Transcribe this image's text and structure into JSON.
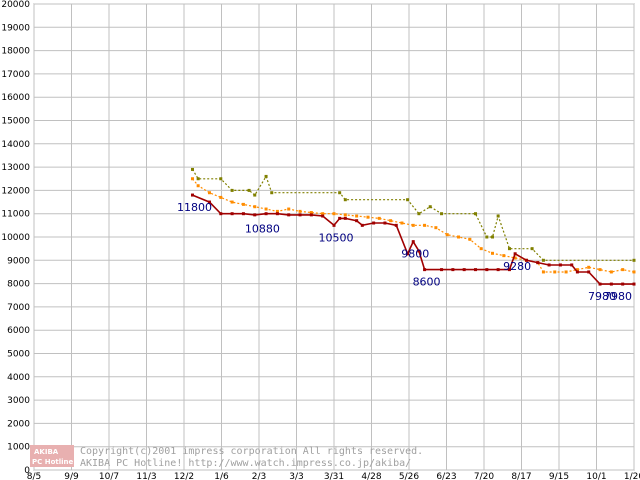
{
  "chart_data": {
    "type": "line",
    "title": "",
    "xlabel": "",
    "ylabel": "",
    "ylim": [
      0,
      20000
    ],
    "yticks": [
      0,
      1000,
      2000,
      3000,
      4000,
      5000,
      6000,
      7000,
      8000,
      9000,
      10000,
      11000,
      12000,
      13000,
      14000,
      15000,
      16000,
      17000,
      18000,
      19000,
      20000
    ],
    "xticks": [
      "8/5",
      "9/9",
      "10/7",
      "11/3",
      "12/2",
      "1/6",
      "2/3",
      "3/3",
      "3/31",
      "4/28",
      "5/26",
      "6/23",
      "7/20",
      "8/17",
      "9/15",
      "10/1",
      "1/20"
    ],
    "grid": true,
    "legend": "none",
    "x_index_range": [
      0,
      53
    ],
    "series": [
      {
        "name": "",
        "color": "#808000",
        "style": "dotted",
        "points": [
          [
            14.0,
            12900
          ],
          [
            14.5,
            12500
          ],
          [
            16.5,
            12500
          ],
          [
            17.5,
            12000
          ],
          [
            19.0,
            12000
          ],
          [
            19.5,
            11800
          ],
          [
            20.5,
            12600
          ],
          [
            21.0,
            11900
          ],
          [
            27.0,
            11900
          ],
          [
            27.5,
            11600
          ],
          [
            33.0,
            11600
          ],
          [
            34.0,
            11000
          ],
          [
            35.0,
            11300
          ],
          [
            36.0,
            11000
          ],
          [
            39.0,
            11000
          ],
          [
            40.0,
            10000
          ],
          [
            40.5,
            10000
          ],
          [
            41.0,
            10900
          ],
          [
            42.0,
            9500
          ],
          [
            44.0,
            9500
          ],
          [
            45.0,
            9000
          ],
          [
            53.0,
            9000
          ]
        ]
      },
      {
        "name": "",
        "color": "#ff8c00",
        "style": "dotted",
        "points": [
          [
            14.0,
            12500
          ],
          [
            14.5,
            12200
          ],
          [
            15.5,
            11900
          ],
          [
            16.5,
            11700
          ],
          [
            17.5,
            11500
          ],
          [
            18.5,
            11400
          ],
          [
            19.5,
            11300
          ],
          [
            20.5,
            11200
          ],
          [
            21.5,
            11100
          ],
          [
            22.5,
            11200
          ],
          [
            23.5,
            11100
          ],
          [
            24.5,
            11050
          ],
          [
            25.5,
            11000
          ],
          [
            26.5,
            11000
          ],
          [
            27.5,
            10950
          ],
          [
            28.5,
            10900
          ],
          [
            29.5,
            10850
          ],
          [
            30.5,
            10800
          ],
          [
            31.5,
            10700
          ],
          [
            32.5,
            10600
          ],
          [
            33.5,
            10500
          ],
          [
            34.5,
            10500
          ],
          [
            35.5,
            10400
          ],
          [
            36.5,
            10100
          ],
          [
            37.5,
            10000
          ],
          [
            38.5,
            9900
          ],
          [
            39.5,
            9500
          ],
          [
            40.5,
            9300
          ],
          [
            41.5,
            9200
          ],
          [
            42.5,
            9100
          ],
          [
            43.5,
            9000
          ],
          [
            44.5,
            8900
          ],
          [
            45.0,
            8500
          ],
          [
            46.0,
            8500
          ],
          [
            47.0,
            8500
          ],
          [
            48.0,
            8600
          ],
          [
            49.0,
            8700
          ],
          [
            50.0,
            8600
          ],
          [
            51.0,
            8500
          ],
          [
            52.0,
            8600
          ],
          [
            53.0,
            8500
          ]
        ]
      },
      {
        "name": "",
        "color": "#a00000",
        "style": "solid",
        "points": [
          [
            14.0,
            11800
          ],
          [
            15.5,
            11500
          ],
          [
            16.5,
            11000
          ],
          [
            17.5,
            11000
          ],
          [
            18.5,
            11000
          ],
          [
            19.5,
            10950
          ],
          [
            20.5,
            11000
          ],
          [
            21.5,
            11000
          ],
          [
            22.5,
            10950
          ],
          [
            23.5,
            10950
          ],
          [
            24.5,
            10950
          ],
          [
            25.5,
            10900
          ],
          [
            26.5,
            10500
          ],
          [
            27.0,
            10800
          ],
          [
            27.5,
            10800
          ],
          [
            28.5,
            10700
          ],
          [
            29.0,
            10500
          ],
          [
            30.0,
            10600
          ],
          [
            31.0,
            10600
          ],
          [
            32.0,
            10500
          ],
          [
            33.0,
            9280
          ],
          [
            33.5,
            9800
          ],
          [
            34.0,
            9400
          ],
          [
            34.5,
            8600
          ],
          [
            36.0,
            8600
          ],
          [
            37.0,
            8600
          ],
          [
            38.0,
            8600
          ],
          [
            39.0,
            8600
          ],
          [
            40.0,
            8600
          ],
          [
            41.0,
            8600
          ],
          [
            42.0,
            8600
          ],
          [
            42.5,
            9280
          ],
          [
            43.5,
            9000
          ],
          [
            44.5,
            8900
          ],
          [
            45.5,
            8800
          ],
          [
            46.5,
            8800
          ],
          [
            47.5,
            8800
          ],
          [
            48.0,
            8500
          ],
          [
            49.0,
            8500
          ],
          [
            50.0,
            7980
          ],
          [
            51.0,
            7980
          ],
          [
            52.0,
            7980
          ],
          [
            53.0,
            7980
          ]
        ]
      }
    ],
    "annotations": [
      {
        "text": "11800",
        "x": 14.0,
        "y": 11800
      },
      {
        "text": "10880",
        "x": 20.0,
        "y": 10880
      },
      {
        "text": "10500",
        "x": 26.5,
        "y": 10500
      },
      {
        "text": "9800",
        "x": 33.5,
        "y": 9800
      },
      {
        "text": "8600",
        "x": 34.5,
        "y": 8600
      },
      {
        "text": "9280",
        "x": 42.5,
        "y": 9280
      },
      {
        "text": "7980",
        "x": 50.0,
        "y": 7980
      },
      {
        "text": "7980",
        "x": 53.0,
        "y": 7980
      }
    ]
  },
  "credit": {
    "line1": "Copyright(c)2001 impress corporation All rights reserved.",
    "line2": "AKIBA PC Hotline!  http://www.watch.impress.co.jp/akiba/",
    "badge_top": "AKIBA",
    "badge_bottom": "PC Hotline"
  }
}
